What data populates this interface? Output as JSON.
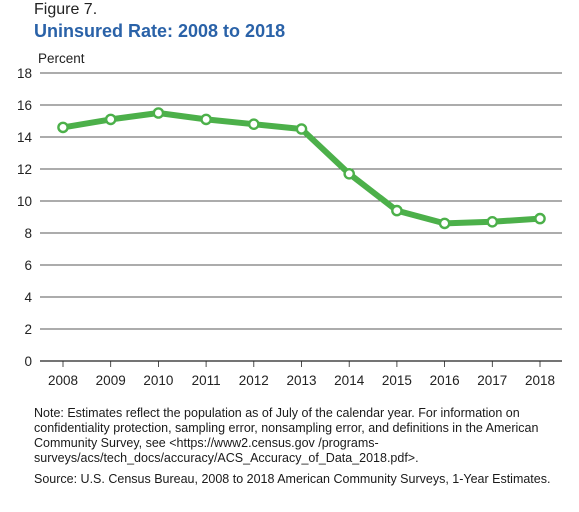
{
  "figure_label": "Figure 7.",
  "note": "Note: Estimates reflect the population as of July of the calendar year. For information on confidentiality protection, sampling error, nonsampling error, and definitions in the American Community Survey, see <https://www2.census.gov /programs-surveys/acs/tech_docs/accuracy/ACS_Accuracy_of_Data_2018.pdf>.",
  "source": "Source: U.S. Census Bureau, 2008 to 2018 American Community Surveys, 1-Year Estimates.",
  "colors": {
    "title": "#2a62a8",
    "line": "#4cb04a",
    "marker_fill": "#ffffff",
    "grid": "#222222"
  },
  "chart_data": {
    "type": "line",
    "title": "Uninsured Rate: 2008 to 2018",
    "ylabel": "Percent",
    "xlabel": "",
    "ylim": [
      0,
      18
    ],
    "yticks": [
      0,
      2,
      4,
      6,
      8,
      10,
      12,
      14,
      16,
      18
    ],
    "grid": true,
    "categories": [
      "2008",
      "2009",
      "2010",
      "2011",
      "2012",
      "2013",
      "2014",
      "2015",
      "2016",
      "2017",
      "2018"
    ],
    "series": [
      {
        "values": [
          14.6,
          15.1,
          15.5,
          15.1,
          14.8,
          14.5,
          11.7,
          9.4,
          8.6,
          8.7,
          8.9
        ]
      }
    ]
  }
}
